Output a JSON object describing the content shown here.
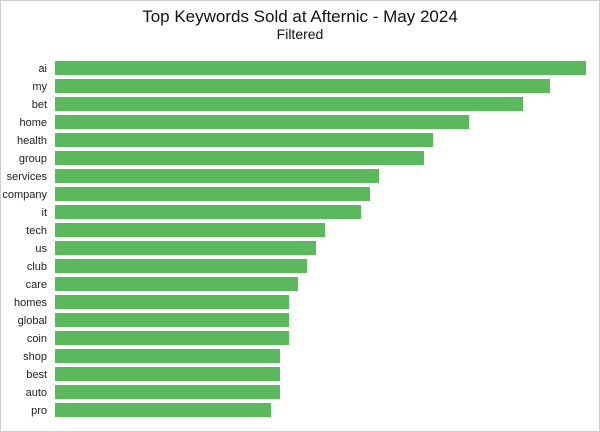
{
  "colors": {
    "bar": "#5cb85c",
    "background": "#ffffff",
    "text": "#222222"
  },
  "chart_data": {
    "type": "bar",
    "orientation": "horizontal",
    "title": "Top Keywords Sold at Afternic - May 2024",
    "subtitle": "Filtered",
    "xlabel": "",
    "ylabel": "",
    "grid": false,
    "legend": "none",
    "categories": [
      "ai",
      "my",
      "bet",
      "home",
      "health",
      "group",
      "services",
      "company",
      "it",
      "tech",
      "us",
      "club",
      "care",
      "homes",
      "global",
      "coin",
      "shop",
      "best",
      "auto",
      "pro"
    ],
    "values": [
      59,
      55,
      52,
      46,
      42,
      41,
      36,
      35,
      34,
      30,
      29,
      28,
      27,
      26,
      26,
      26,
      25,
      25,
      25,
      24
    ],
    "xlim": [
      0,
      60
    ]
  }
}
